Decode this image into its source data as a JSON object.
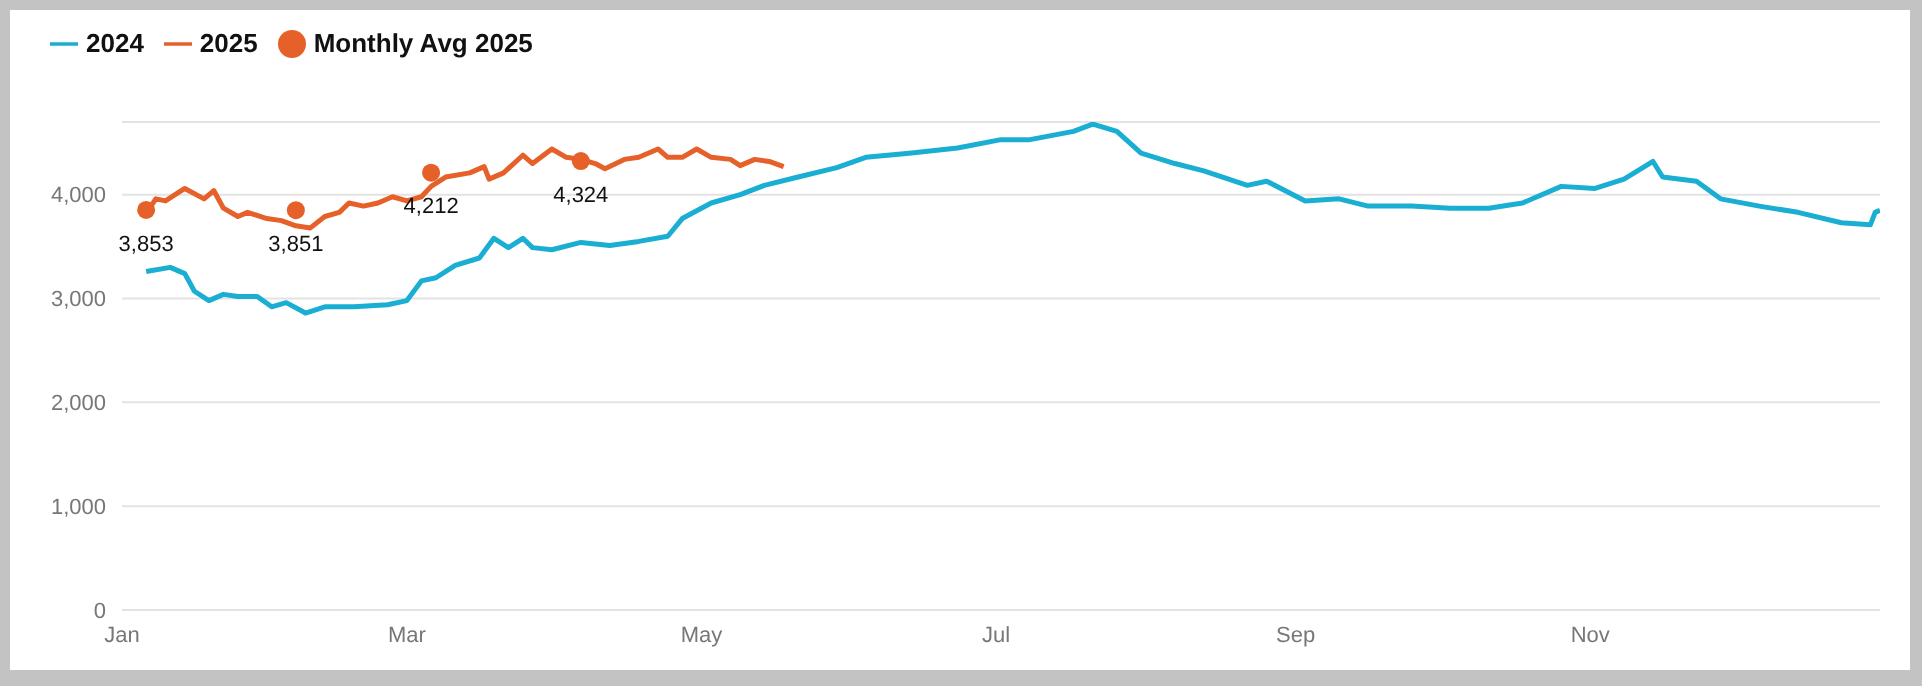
{
  "chart_data": {
    "type": "line",
    "xlim": [
      "--01-01",
      "--12-31"
    ],
    "xticks": [
      {
        "value": "--01-01",
        "label": "Jan"
      },
      {
        "value": "--03-01",
        "label": "Mar"
      },
      {
        "value": "--05-01",
        "label": "May"
      },
      {
        "value": "--07-01",
        "label": "Jul"
      },
      {
        "value": "--09-01",
        "label": "Sep"
      },
      {
        "value": "--11-01",
        "label": "Nov"
      }
    ],
    "ylim": [
      0,
      4700
    ],
    "yticks": [
      0,
      {
        "value": 1000,
        "label": "1,000"
      },
      {
        "value": 2000,
        "label": "2,000"
      },
      {
        "value": 3000,
        "label": "3,000"
      },
      {
        "value": 4000,
        "label": "4,000"
      }
    ],
    "grid": "y",
    "legend": "top left",
    "series": [
      {
        "name": "2024",
        "color": "#1aaed3",
        "x": [
          "--01-06",
          "--01-11",
          "--01-14",
          "--01-16",
          "--01-19",
          "--01-22",
          "--01-25",
          "--01-29",
          "--02-01",
          "--02-04",
          "--02-08",
          "--02-12",
          "--02-18",
          "--02-25",
          "--03-01",
          "--03-04",
          "--03-07",
          "--03-11",
          "--03-16",
          "--03-19",
          "--03-22",
          "--03-25",
          "--03-27",
          "--03-31",
          "--04-06",
          "--04-12",
          "--04-18",
          "--04-24",
          "--04-27",
          "--05-03",
          "--05-09",
          "--05-14",
          "--05-21",
          "--05-29",
          "--06-04",
          "--06-13",
          "--06-23",
          "--07-02",
          "--07-08",
          "--07-17",
          "--07-21",
          "--07-26",
          "--07-31",
          "--08-07",
          "--08-13",
          "--08-22",
          "--08-26",
          "--09-03",
          "--09-10",
          "--09-16",
          "--09-25",
          "--10-03",
          "--10-11",
          "--10-18",
          "--10-26",
          "--11-02",
          "--11-08",
          "--11-14",
          "--11-16",
          "--11-23",
          "--11-28",
          "--12-06",
          "--12-14",
          "--12-23",
          "--12-29",
          "--12-30",
          "--12-31"
        ],
        "values": [
          3260,
          3300,
          3240,
          3070,
          2980,
          3040,
          3020,
          3020,
          2920,
          2960,
          2860,
          2920,
          2920,
          2940,
          2980,
          3170,
          3200,
          3320,
          3390,
          3580,
          3490,
          3580,
          3490,
          3470,
          3540,
          3510,
          3550,
          3600,
          3770,
          3920,
          4000,
          4090,
          4170,
          4260,
          4360,
          4400,
          4450,
          4530,
          4530,
          4610,
          4680,
          4610,
          4400,
          4300,
          4230,
          4090,
          4130,
          3940,
          3960,
          3890,
          3890,
          3870,
          3870,
          3920,
          4080,
          4060,
          4150,
          4320,
          4170,
          4130,
          3960,
          3890,
          3830,
          3730,
          3710,
          3830,
          3850
        ]
      },
      {
        "name": "2025",
        "color": "#e6602a",
        "x": [
          "--01-07",
          "--01-08",
          "--01-10",
          "--01-14",
          "--01-18",
          "--01-20",
          "--01-22",
          "--01-25",
          "--01-27",
          "--01-31",
          "--02-03",
          "--02-06",
          "--02-09",
          "--02-12",
          "--02-15",
          "--02-17",
          "--02-20",
          "--02-23",
          "--02-26",
          "--03-01",
          "--03-04",
          "--03-06",
          "--03-09",
          "--03-14",
          "--03-17",
          "--03-18",
          "--03-21",
          "--03-25",
          "--03-27",
          "--03-31",
          "--04-03",
          "--04-06",
          "--04-09",
          "--04-11",
          "--04-15",
          "--04-18",
          "--04-22",
          "--04-24",
          "--04-27",
          "--04-30",
          "--05-03",
          "--05-07",
          "--05-09",
          "--05-12",
          "--05-15",
          "--05-18"
        ],
        "values": [
          3890,
          3960,
          3940,
          4060,
          3960,
          4040,
          3870,
          3790,
          3830,
          3770,
          3750,
          3700,
          3680,
          3790,
          3830,
          3920,
          3890,
          3920,
          3980,
          3940,
          3980,
          4080,
          4170,
          4210,
          4270,
          4150,
          4210,
          4380,
          4300,
          4440,
          4360,
          4340,
          4300,
          4250,
          4340,
          4360,
          4440,
          4360,
          4360,
          4440,
          4360,
          4340,
          4280,
          4340,
          4320,
          4270
        ]
      },
      {
        "name": "Monthly Avg 2025",
        "type": "scatter",
        "color": "#e6602a",
        "marker": "circle",
        "value_labels": [
          "3,853",
          "3,851",
          "4,212",
          "4,324"
        ],
        "x": [
          "--01-06",
          "--02-06",
          "--03-06",
          "--04-06"
        ],
        "values": [
          3853,
          3851,
          4212,
          4324
        ]
      }
    ]
  }
}
